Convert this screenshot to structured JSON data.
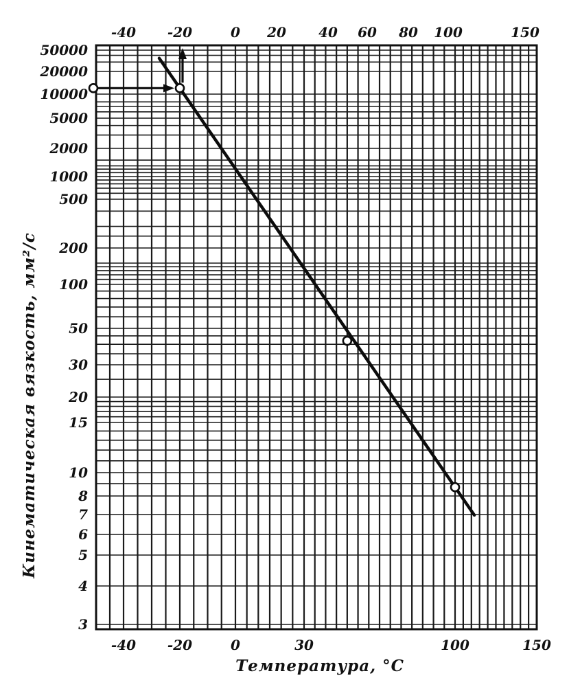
{
  "chart_data": {
    "type": "line",
    "xlabel": "Температура, °C",
    "ylabel": "Кинематическая вязкость, мм²/с",
    "y_scale": "log",
    "ylim": [
      3,
      50000
    ],
    "x_ticks_bottom": [
      "-40",
      "-20",
      "0",
      "30",
      "100",
      "150"
    ],
    "x_ticks_top": [
      "-40",
      "-20",
      "0",
      "20",
      "40",
      "60",
      "80",
      "100",
      "150"
    ],
    "y_ticks": [
      "50000",
      "20000",
      "10000",
      "5000",
      "2000",
      "1000",
      "500",
      "200",
      "100",
      "50",
      "30",
      "20",
      "15",
      "10",
      "8",
      "7",
      "6",
      "5",
      "4",
      "3"
    ],
    "series": [
      {
        "points": [
          {
            "x": -20,
            "y": 12000
          },
          {
            "x": 50,
            "y": 42
          },
          {
            "x": 100,
            "y": 8.7
          }
        ]
      }
    ],
    "annotations": [
      {
        "type": "arrow",
        "from_y": 12000,
        "to_x": -20,
        "direction": "horizontal"
      },
      {
        "type": "arrow",
        "at_x": -20,
        "direction": "up"
      }
    ]
  }
}
